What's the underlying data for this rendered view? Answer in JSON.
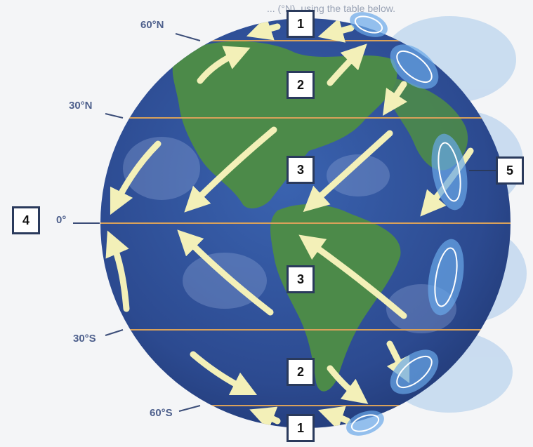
{
  "header_fragment": "... (°N), using the table below.",
  "latitudes": {
    "n60": "60°N",
    "n30": "30°N",
    "eq": "0°",
    "s30": "30°S",
    "s60": "60°S"
  },
  "boxes": {
    "top_polar": "1",
    "north_westerlies": "2",
    "north_trades": "3",
    "equator": "4",
    "cells": "5",
    "south_trades": "3",
    "south_westerlies": "2",
    "bottom_polar": "1"
  },
  "colors": {
    "ocean": "#2f4f96",
    "land": "#4c8a49",
    "arrow": "#f3f0b8",
    "latitude_line": "#d9a15a",
    "cell": "#6aa8e8"
  }
}
